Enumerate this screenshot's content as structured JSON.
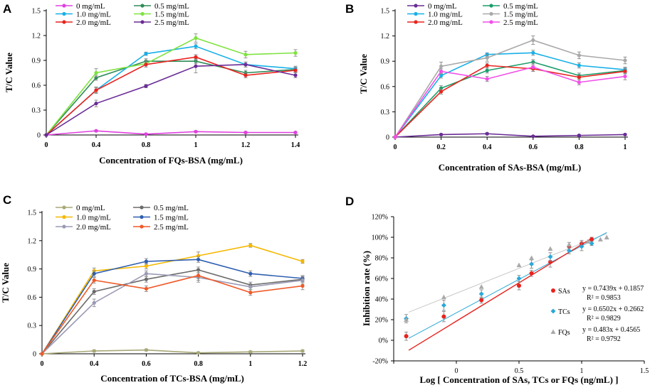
{
  "chart_data": [
    {
      "panel": "A",
      "type": "line",
      "xlabel": "Concentration of FQs-BSA (mg/mL)",
      "ylabel": "T/C Value",
      "x": [
        0,
        0.4,
        0.8,
        1,
        1.2,
        1.4
      ],
      "xticks": [
        "0",
        "0.4",
        "0.8",
        "1",
        "1.2",
        "1.4"
      ],
      "ylim": [
        0,
        1.5
      ],
      "yticks": [
        "0",
        "0.3",
        "0.6",
        "0.9",
        "1.2",
        "1.5"
      ],
      "series": [
        {
          "name": "0 mg/mL",
          "color": "#e040e0",
          "values": [
            0,
            0.05,
            0.01,
            0.04,
            0.03,
            0.03
          ],
          "errors": [
            0,
            0.01,
            0.01,
            0.01,
            0.01,
            0.01
          ]
        },
        {
          "name": "0.5 mg/mL",
          "color": "#2e8b57",
          "values": [
            0,
            0.69,
            0.89,
            0.89,
            0.75,
            0.79
          ],
          "errors": [
            0,
            0.03,
            0.03,
            0.03,
            0.03,
            0.03
          ]
        },
        {
          "name": "1.0 mg/mL",
          "color": "#17b0e8",
          "values": [
            0,
            0.54,
            0.98,
            1.07,
            0.85,
            0.8
          ],
          "errors": [
            0,
            0.03,
            0.02,
            0.03,
            0.03,
            0.03
          ]
        },
        {
          "name": "1.5 mg/mL",
          "color": "#7ee33f",
          "values": [
            0,
            0.75,
            0.86,
            1.17,
            0.97,
            0.99
          ],
          "errors": [
            0,
            0.05,
            0.04,
            0.05,
            0.04,
            0.04
          ]
        },
        {
          "name": "2.0 mg/mL",
          "color": "#e8231e",
          "values": [
            0,
            0.54,
            0.85,
            0.94,
            0.72,
            0.78
          ],
          "errors": [
            0,
            0.04,
            0.03,
            0.03,
            0.03,
            0.03
          ]
        },
        {
          "name": "2.5 mg/mL",
          "color": "#6a2c96",
          "values": [
            0,
            0.38,
            0.59,
            0.83,
            0.85,
            0.72
          ],
          "errors": [
            0,
            0.04,
            0.02,
            0.08,
            0.03,
            0.03
          ]
        }
      ]
    },
    {
      "panel": "B",
      "type": "line",
      "xlabel": "Concentration of SAs-BSA (mg/mL)",
      "ylabel": "T/C Value",
      "x": [
        0,
        0.2,
        0.4,
        0.6,
        0.8,
        1
      ],
      "xticks": [
        "0",
        "0.2",
        "0.4",
        "0.6",
        "0.8",
        "1"
      ],
      "ylim": [
        0,
        1.5
      ],
      "yticks": [
        "0",
        "0.3",
        "0.6",
        "0.9",
        "1.2",
        "1.5"
      ],
      "series": [
        {
          "name": "0 mg/mL",
          "color": "#6a2c96",
          "values": [
            0,
            0.03,
            0.04,
            0.01,
            0.02,
            0.03
          ],
          "errors": [
            0,
            0.01,
            0.01,
            0.01,
            0.01,
            0.01
          ]
        },
        {
          "name": "0.5 mg/mL",
          "color": "#1a9e6a",
          "values": [
            0,
            0.58,
            0.79,
            0.89,
            0.73,
            0.79
          ],
          "errors": [
            0,
            0.03,
            0.03,
            0.03,
            0.03,
            0.03
          ]
        },
        {
          "name": "1.0 mg/mL",
          "color": "#17b0e8",
          "values": [
            0,
            0.73,
            0.98,
            1.0,
            0.85,
            0.8
          ],
          "errors": [
            0,
            0.03,
            0.02,
            0.03,
            0.03,
            0.03
          ]
        },
        {
          "name": "1.5 mg/mL",
          "color": "#a9a9a9",
          "values": [
            0,
            0.84,
            0.94,
            1.15,
            0.97,
            0.91
          ],
          "errors": [
            0,
            0.05,
            0.04,
            0.05,
            0.04,
            0.04
          ]
        },
        {
          "name": "2.0 mg/mL",
          "color": "#e8231e",
          "values": [
            0,
            0.54,
            0.85,
            0.81,
            0.71,
            0.78
          ],
          "errors": [
            0,
            0.03,
            0.03,
            0.03,
            0.03,
            0.03
          ]
        },
        {
          "name": "2.5 mg/mL",
          "color": "#f04fe8",
          "values": [
            0,
            0.78,
            0.69,
            0.83,
            0.65,
            0.72
          ],
          "errors": [
            0,
            0.03,
            0.03,
            0.05,
            0.03,
            0.04
          ]
        }
      ]
    },
    {
      "panel": "C",
      "type": "line",
      "xlabel": "Concentration of TCs-BSA (mg/mL)",
      "ylabel": "T/C Value",
      "x": [
        0,
        0.4,
        0.6,
        0.8,
        1,
        1.2
      ],
      "xticks": [
        "0",
        "0.4",
        "0.6",
        "0.8",
        "1",
        "1.2"
      ],
      "ylim": [
        0,
        1.5
      ],
      "yticks": [
        "0",
        "0.3",
        "0.6",
        "0.9",
        "1.2",
        "1.5"
      ],
      "series": [
        {
          "name": "0 mg/mL",
          "color": "#a8a878",
          "values": [
            0,
            0.03,
            0.04,
            0.01,
            0.02,
            0.03
          ],
          "errors": [
            0,
            0.01,
            0.01,
            0.01,
            0.01,
            0.01
          ]
        },
        {
          "name": "0.5 mg/mL",
          "color": "#6b6b6b",
          "values": [
            0,
            0.66,
            0.79,
            0.89,
            0.73,
            0.79
          ],
          "errors": [
            0,
            0.03,
            0.03,
            0.03,
            0.03,
            0.03
          ]
        },
        {
          "name": "1.0 mg/mL",
          "color": "#f5b800",
          "values": [
            0,
            0.88,
            0.93,
            1.04,
            1.15,
            0.98
          ],
          "errors": [
            0,
            0.03,
            0.03,
            0.04,
            0.02,
            0.02
          ]
        },
        {
          "name": "1.5 mg/mL",
          "color": "#2f5fb0",
          "values": [
            0,
            0.85,
            0.98,
            1.0,
            0.85,
            0.8
          ],
          "errors": [
            0,
            0.03,
            0.03,
            0.03,
            0.03,
            0.03
          ]
        },
        {
          "name": "2.0 mg/mL",
          "color": "#9a9ab5",
          "values": [
            0,
            0.54,
            0.85,
            0.81,
            0.71,
            0.78
          ],
          "errors": [
            0,
            0.04,
            0.03,
            0.05,
            0.03,
            0.04
          ]
        },
        {
          "name": "2.5 mg/mL",
          "color": "#f05a28",
          "values": [
            0,
            0.78,
            0.69,
            0.83,
            0.65,
            0.72
          ],
          "errors": [
            0,
            0.03,
            0.03,
            0.05,
            0.03,
            0.04
          ]
        }
      ]
    },
    {
      "panel": "D",
      "type": "scatter",
      "xlabel": "Log [ Concentration of SAs, TCs or FQs (ng/mL) ]",
      "ylabel": "Inhibition rate (%)",
      "xlim": [
        -0.5,
        1.5
      ],
      "xticks": [
        -0.5,
        0,
        0.5,
        1,
        1.5
      ],
      "xtick_labels": [
        "",
        "0",
        "0.5",
        "1",
        "1.5"
      ],
      "ylim": [
        -0.2,
        1.2
      ],
      "yticks": [
        -0.2,
        0,
        0.2,
        0.4,
        0.6,
        0.8,
        1.0,
        1.2
      ],
      "ytick_labels": [
        "-20%",
        "0%",
        "20%",
        "40%",
        "60%",
        "80%",
        "100%",
        "120%"
      ],
      "series": [
        {
          "name": "SAs",
          "color": "#e8231e",
          "marker": "circle",
          "x": [
            -0.4,
            -0.1,
            0.2,
            0.5,
            0.6,
            0.75,
            0.9,
            1.0,
            1.08
          ],
          "y": [
            0.04,
            0.23,
            0.39,
            0.53,
            0.65,
            0.76,
            0.91,
            0.94,
            0.98
          ],
          "errors": [
            0.04,
            0.05,
            0.03,
            0.04,
            0.03,
            0.05,
            0.04,
            0.03,
            0.02
          ],
          "fit_slope": 0.7439,
          "fit_intercept": 0.1857,
          "equation": "y = 0.7439x + 0.1857",
          "r2": "R² = 0.9853"
        },
        {
          "name": "TCs",
          "color": "#2aa8d8",
          "marker": "diamond",
          "x": [
            -0.4,
            -0.1,
            0.2,
            0.5,
            0.6,
            0.75,
            0.9,
            1.0,
            1.08
          ],
          "y": [
            0.21,
            0.34,
            0.45,
            0.6,
            0.74,
            0.81,
            0.87,
            0.91,
            0.94
          ],
          "errors": [
            0.04,
            0.05,
            0.04,
            0.03,
            0.04,
            0.04,
            0.03,
            0.04,
            0.02
          ],
          "fit_slope": 0.6502,
          "fit_intercept": 0.2662,
          "equation": "y = 0.6502x + 0.2662",
          "r2": "R² = 0.9829"
        },
        {
          "name": "FQs",
          "color": "#a9a9a9",
          "marker": "triangle",
          "x": [
            -0.4,
            -0.1,
            0.2,
            0.5,
            0.6,
            0.75,
            0.9,
            1.05,
            1.15,
            1.2
          ],
          "y": [
            0.2,
            0.42,
            0.52,
            0.73,
            0.8,
            0.89,
            0.93,
            0.96,
            0.98,
            1.0
          ],
          "errors": [
            0,
            0,
            0,
            0,
            0,
            0,
            0,
            0,
            0,
            0
          ],
          "fit_slope": 0.483,
          "fit_intercept": 0.4565,
          "equation": "y = 0.483x + 0.4565",
          "r2": "R² = 0.9792"
        }
      ]
    }
  ]
}
